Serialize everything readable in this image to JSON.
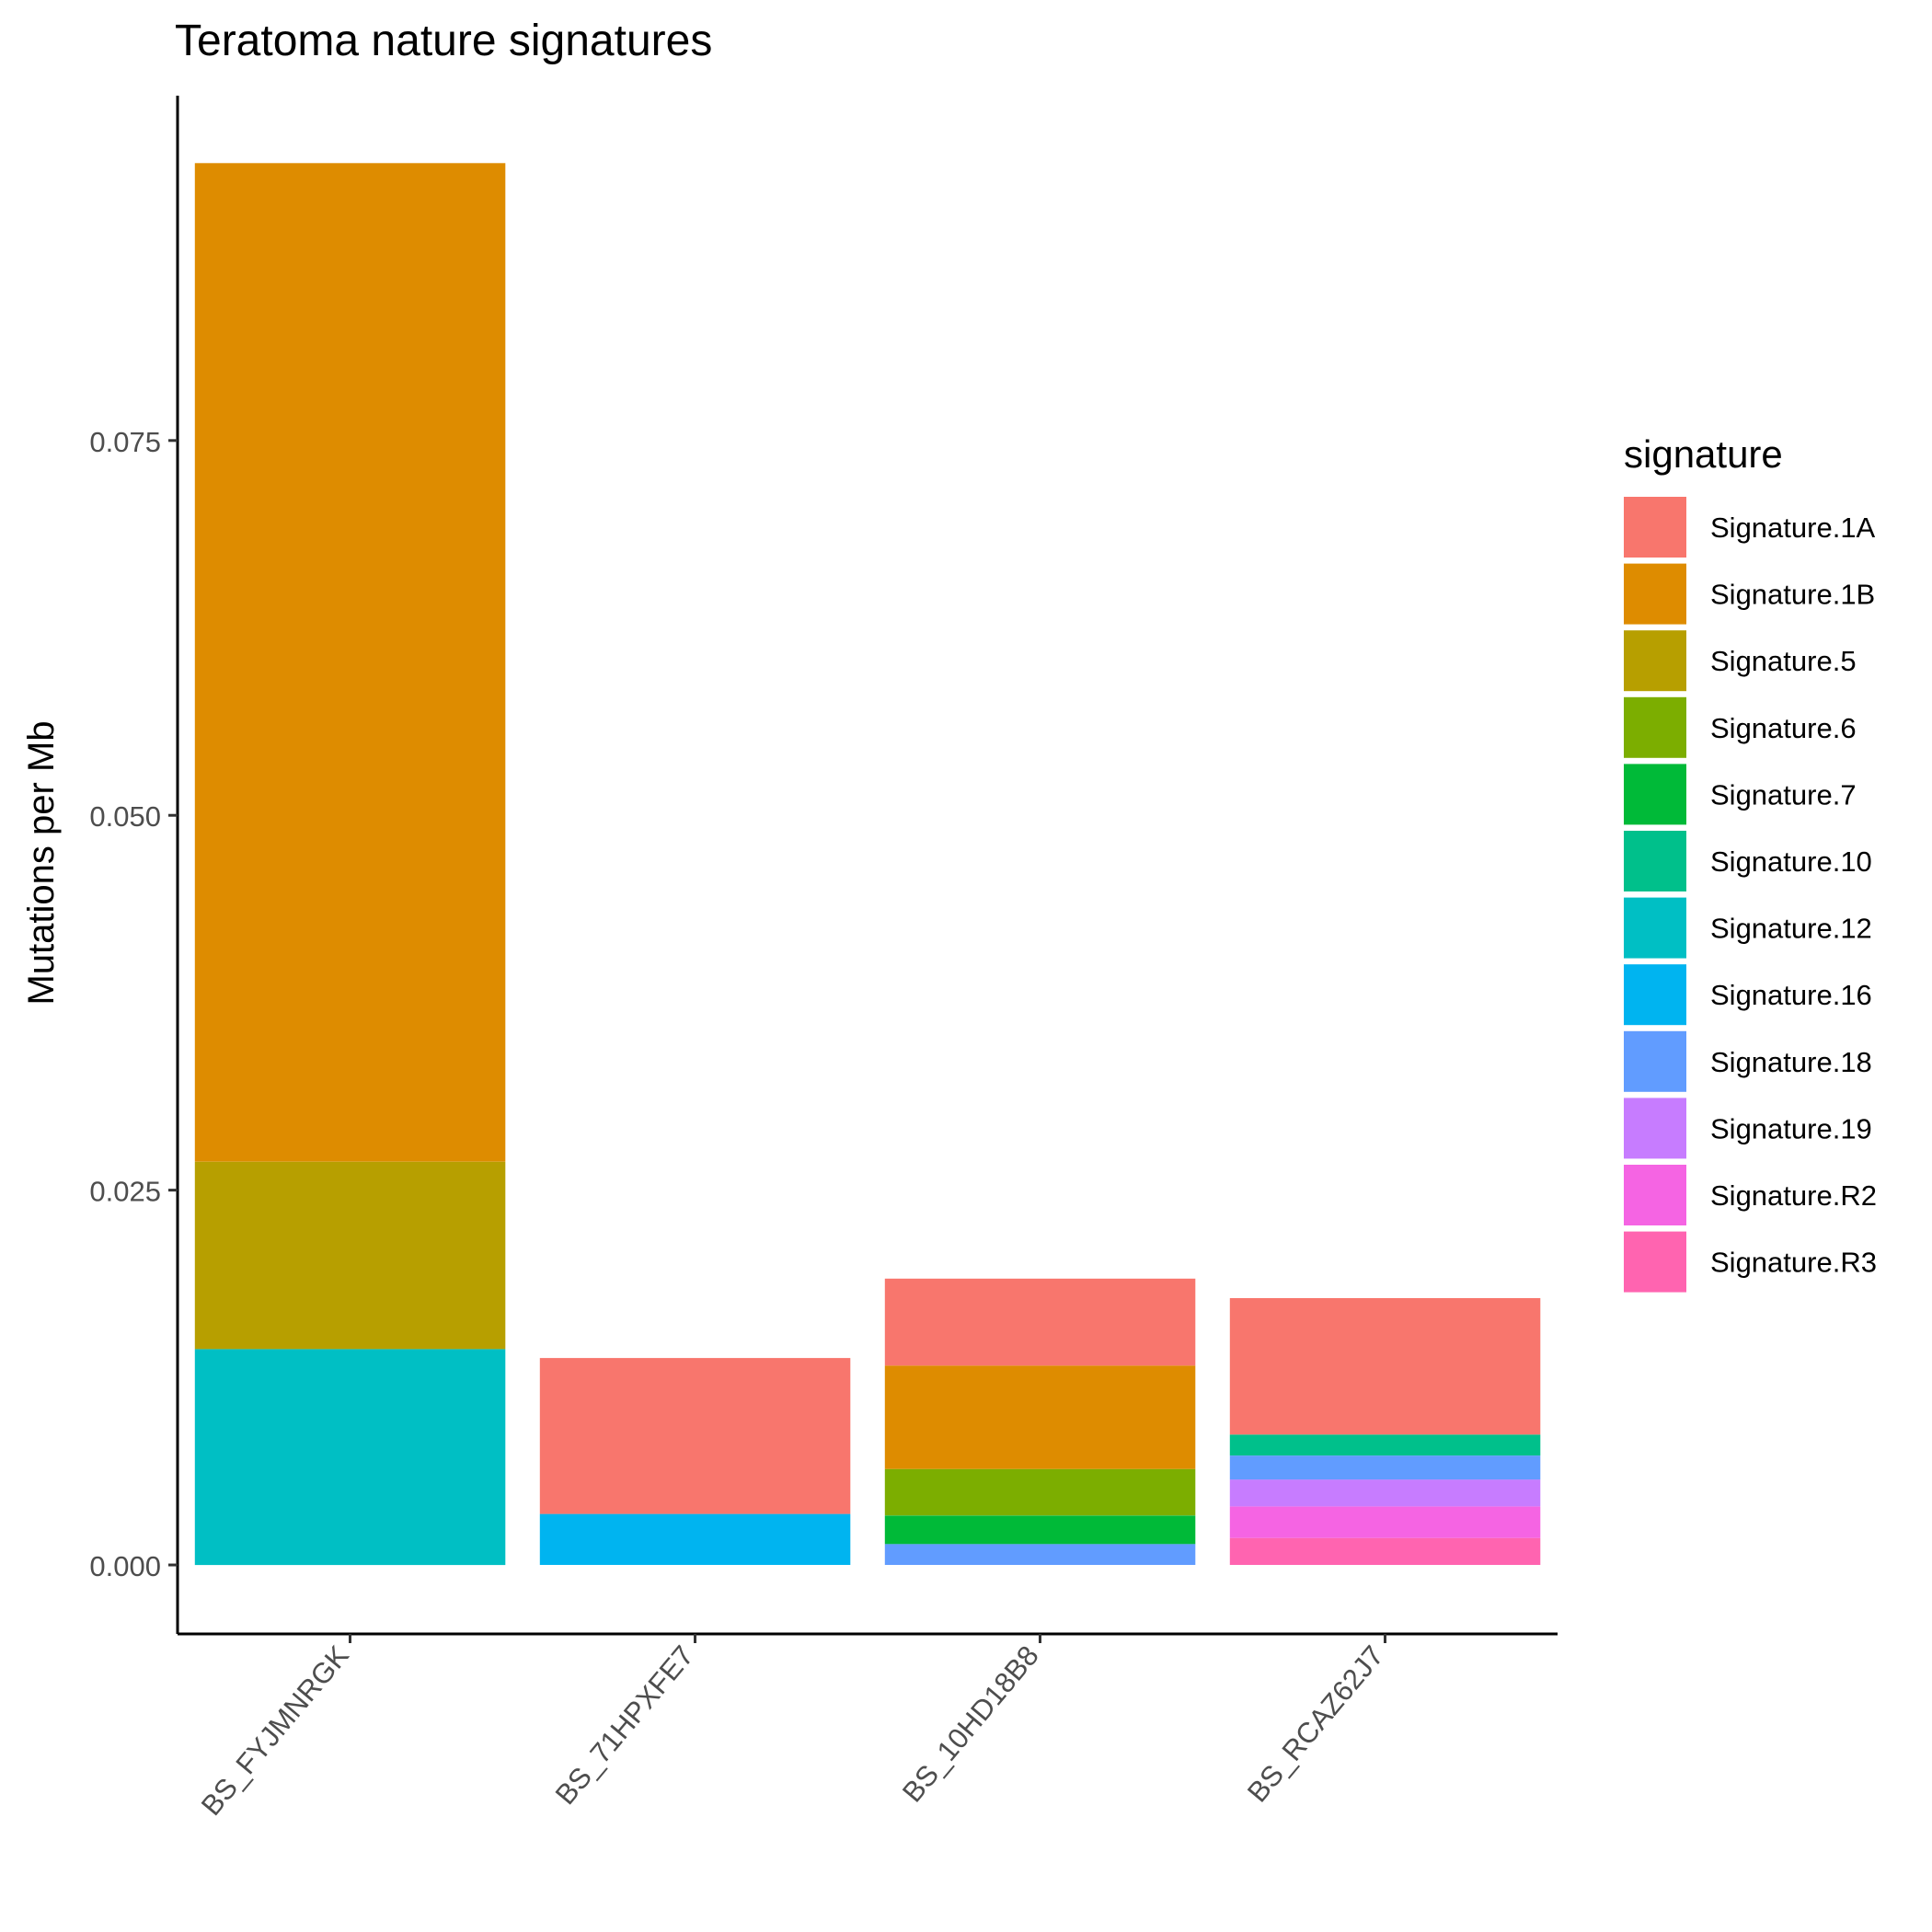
{
  "chart_data": {
    "type": "bar",
    "stacked": true,
    "title": "Teratoma nature signatures",
    "xlabel": "",
    "ylabel": "Mutations per Mb",
    "ylim": [
      -0.0046,
      0.098
    ],
    "yticks": [
      0.0,
      0.025,
      0.05,
      0.075
    ],
    "ytick_labels": [
      "0.000",
      "0.025",
      "0.050",
      "0.075"
    ],
    "grid": false,
    "legend_title": "signature",
    "legend_position": "right",
    "categories": [
      "BS_FYJMNRGK",
      "BS_71HPXFE7",
      "BS_10HD18B8",
      "BS_RCAZ62J7"
    ],
    "series": [
      {
        "name": "Signature.1A",
        "color": "#F8766D",
        "values": [
          0,
          0.0104,
          0.0058,
          0.0091
        ]
      },
      {
        "name": "Signature.1B",
        "color": "#DE8C00",
        "values": [
          0.0666,
          0,
          0.0069,
          0
        ]
      },
      {
        "name": "Signature.5",
        "color": "#B79F00",
        "values": [
          0.0125,
          0,
          0,
          0
        ]
      },
      {
        "name": "Signature.6",
        "color": "#7CAE00",
        "values": [
          0,
          0,
          0.0031,
          0
        ]
      },
      {
        "name": "Signature.7",
        "color": "#00BA38",
        "values": [
          0,
          0,
          0.0019,
          0
        ]
      },
      {
        "name": "Signature.10",
        "color": "#00C08B",
        "values": [
          0,
          0,
          0,
          0.0014
        ]
      },
      {
        "name": "Signature.12",
        "color": "#00BFC4",
        "values": [
          0.0144,
          0,
          0,
          0
        ]
      },
      {
        "name": "Signature.16",
        "color": "#00B4F0",
        "values": [
          0,
          0.0034,
          0,
          0
        ]
      },
      {
        "name": "Signature.18",
        "color": "#619CFF",
        "values": [
          0,
          0,
          0.0014,
          0.0016
        ]
      },
      {
        "name": "Signature.19",
        "color": "#C77CFF",
        "values": [
          0,
          0,
          0,
          0.0018
        ]
      },
      {
        "name": "Signature.R2",
        "color": "#F564E3",
        "values": [
          0,
          0,
          0,
          0.0021
        ]
      },
      {
        "name": "Signature.R3",
        "color": "#FF64B0",
        "values": [
          0,
          0,
          0,
          0.0018
        ]
      }
    ]
  }
}
